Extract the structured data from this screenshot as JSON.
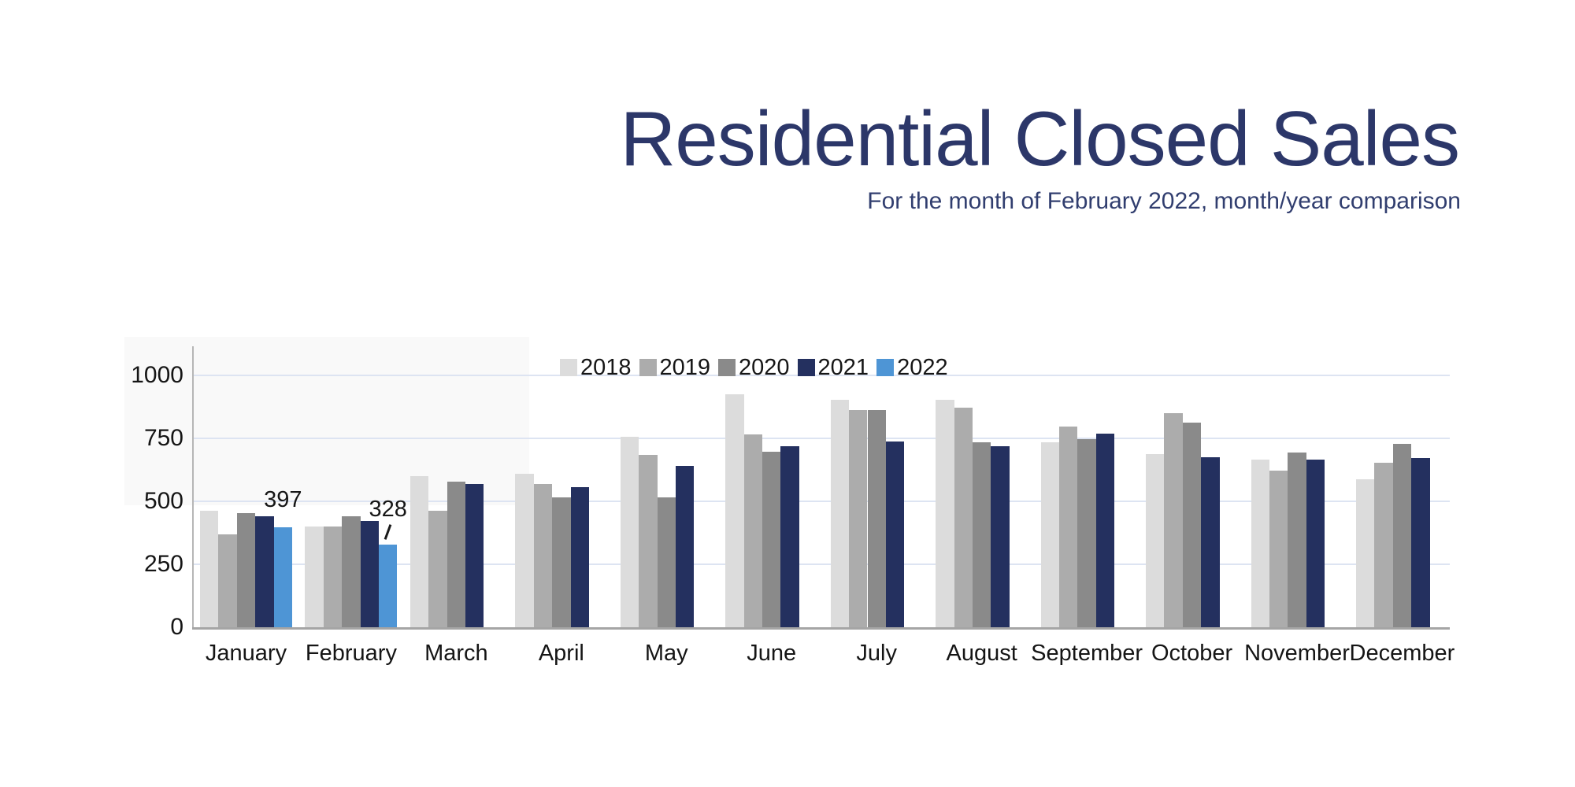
{
  "title": "Residential Closed Sales",
  "subtitle": "For the month of February 2022, month/year comparison",
  "colors": {
    "title_text": "#2c3769",
    "tick_text": "#151515",
    "gridline": "#dde4f2",
    "axis_line": "#a5a5a5",
    "series": {
      "2018": "#dcdcdc",
      "2019": "#acacac",
      "2020": "#8a8a8a",
      "2021": "#24305f",
      "2022": "#4e95d5"
    }
  },
  "chart_data": {
    "type": "bar",
    "title": "Residential Closed Sales",
    "subtitle": "For the month of February 2022, month/year comparison",
    "categories": [
      "January",
      "February",
      "March",
      "April",
      "May",
      "June",
      "July",
      "August",
      "September",
      "October",
      "November",
      "December"
    ],
    "series": [
      {
        "name": "2018",
        "values": [
          462,
          401,
          600,
          608,
          757,
          925,
          902,
          904,
          735,
          686,
          665,
          589
        ]
      },
      {
        "name": "2019",
        "values": [
          368,
          399,
          463,
          568,
          685,
          767,
          861,
          873,
          798,
          851,
          621,
          652
        ]
      },
      {
        "name": "2020",
        "values": [
          452,
          441,
          578,
          515,
          516,
          696,
          863,
          735,
          747,
          812,
          694,
          728
        ]
      },
      {
        "name": "2021",
        "values": [
          442,
          423,
          568,
          557,
          642,
          719,
          737,
          718,
          768,
          674,
          666,
          673
        ]
      },
      {
        "name": "2022",
        "values": [
          397,
          328,
          null,
          null,
          null,
          null,
          null,
          null,
          null,
          null,
          null,
          null
        ]
      }
    ],
    "ylim": [
      0,
      1000
    ],
    "yticks": [
      0,
      250,
      500,
      750,
      1000
    ],
    "grid": "horizontal",
    "legend_position": "top-center",
    "legend_entries": [
      "2018",
      "2019",
      "2020",
      "2021",
      "2022"
    ],
    "annotations": [
      {
        "series": "2022",
        "category": "January",
        "text": "397",
        "leader": false
      },
      {
        "series": "2022",
        "category": "February",
        "text": "328",
        "leader": true
      }
    ]
  }
}
